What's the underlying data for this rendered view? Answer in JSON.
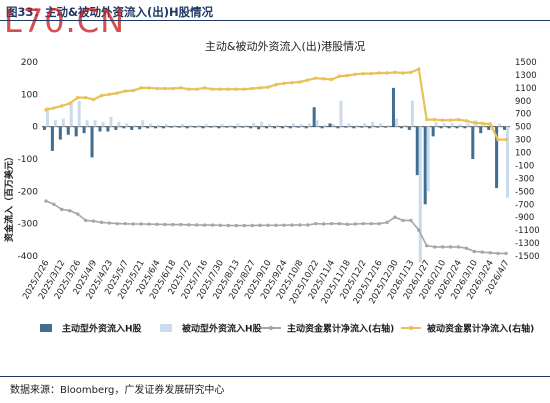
{
  "figure": {
    "title": "图33：主动&被动外资流入(出)H股情况",
    "watermark": "L70.CN",
    "source": "数据来源：Bloomberg，广发证券发展研究中心"
  },
  "colors": {
    "active_bar": "#3f6e92",
    "passive_bar": "#c9dced",
    "active_line": "#a6a6a6",
    "passive_line": "#e7c25a",
    "title_navy": "#1f3864"
  },
  "chart_data": {
    "type": "bar",
    "title": "主动&被动外资流入(出)港股情况",
    "ylabel": "资金流入（百万美元）",
    "ylim": [
      -400,
      200
    ],
    "yticks": [
      -400,
      -300,
      -200,
      -100,
      0,
      100,
      200
    ],
    "y2lim": [
      -1500,
      1500
    ],
    "y2ticks": [
      -1500,
      -1300,
      -1100,
      -900,
      -700,
      -500,
      -300,
      -100,
      100,
      300,
      500,
      700,
      900,
      1100,
      1300,
      1500
    ],
    "grid": false,
    "legend_position": "bottom",
    "x_tick_labels": [
      "2025/2/26",
      "2025/3/12",
      "2025/3/26",
      "2025/4/9",
      "2025/4/23",
      "2025/5/7",
      "2025/5/21",
      "2025/6/4",
      "2025/6/18",
      "2025/7/2",
      "2025/7/16",
      "2025/7/30",
      "2025/8/13",
      "2025/8/27",
      "2025/9/10",
      "2025/9/24",
      "2025/10/8",
      "2025/10/22",
      "2025/11/4",
      "2025/11/18",
      "2025/12/2",
      "2025/12/16",
      "2025/12/30",
      "2026/1/13",
      "2026/1/27",
      "2026/2/10",
      "2026/2/24",
      "2026/3/10",
      "2026/3/24",
      "2026/4/7"
    ],
    "categories": [
      "2025/2/26",
      "2025/3/5",
      "2025/3/12",
      "2025/3/19",
      "2025/3/26",
      "2025/4/2",
      "2025/4/9",
      "2025/4/16",
      "2025/4/23",
      "2025/4/30",
      "2025/5/7",
      "2025/5/14",
      "2025/5/21",
      "2025/5/28",
      "2025/6/4",
      "2025/6/11",
      "2025/6/18",
      "2025/6/25",
      "2025/7/2",
      "2025/7/9",
      "2025/7/16",
      "2025/7/23",
      "2025/7/30",
      "2025/8/6",
      "2025/8/13",
      "2025/8/20",
      "2025/8/27",
      "2025/9/3",
      "2025/9/10",
      "2025/9/17",
      "2025/9/24",
      "2025/10/1",
      "2025/10/8",
      "2025/10/15",
      "2025/10/22",
      "2025/10/29",
      "2025/11/4",
      "2025/11/11",
      "2025/11/18",
      "2025/11/25",
      "2025/12/2",
      "2025/12/9",
      "2025/12/16",
      "2025/12/23",
      "2025/12/30",
      "2026/1/6",
      "2026/1/13",
      "2026/1/20",
      "2026/1/27",
      "2026/2/3",
      "2026/2/10",
      "2026/2/17",
      "2026/2/24",
      "2026/3/3",
      "2026/3/10",
      "2026/3/17",
      "2026/3/24",
      "2026/3/31",
      "2026/4/7"
    ],
    "series": [
      {
        "name": "主动型外资流入H股",
        "axis": "left",
        "kind": "bar",
        "values": [
          -10,
          -75,
          -40,
          -25,
          -30,
          -20,
          -95,
          -15,
          -15,
          -10,
          -5,
          -10,
          -8,
          -5,
          -5,
          -5,
          -3,
          -3,
          -5,
          -3,
          -5,
          -3,
          -5,
          -3,
          -5,
          -3,
          -5,
          -8,
          -5,
          -5,
          -5,
          -5,
          -3,
          -5,
          60,
          -5,
          10,
          -5,
          -3,
          -5,
          -3,
          -5,
          -3,
          -3,
          120,
          -5,
          -10,
          -150,
          -240,
          -30,
          -5,
          -5,
          -5,
          -5,
          -100,
          -20,
          -10,
          -190,
          -10
        ]
      },
      {
        "name": "被动型外资流入H股",
        "axis": "left",
        "kind": "bar",
        "values": [
          60,
          20,
          25,
          75,
          80,
          20,
          20,
          15,
          30,
          15,
          10,
          5,
          20,
          10,
          5,
          8,
          5,
          8,
          5,
          5,
          8,
          5,
          8,
          5,
          10,
          5,
          12,
          15,
          8,
          5,
          5,
          10,
          8,
          10,
          20,
          5,
          8,
          80,
          10,
          5,
          10,
          15,
          10,
          5,
          25,
          5,
          80,
          -420,
          -200,
          15,
          10,
          10,
          8,
          10,
          20,
          5,
          5,
          10,
          -220
        ]
      },
      {
        "name": "主动资金累计净流入(右轴)",
        "axis": "right",
        "kind": "line",
        "values": [
          -650,
          -700,
          -780,
          -800,
          -850,
          -950,
          -960,
          -980,
          -990,
          -1000,
          -1000,
          -1005,
          -1005,
          -1008,
          -1010,
          -1012,
          -1015,
          -1015,
          -1018,
          -1020,
          -1022,
          -1022,
          -1025,
          -1028,
          -1030,
          -1030,
          -1028,
          -1026,
          -1025,
          -1025,
          -1024,
          -1022,
          -1020,
          -1020,
          -1000,
          -1005,
          -1000,
          -1000,
          -1010,
          -1005,
          -1000,
          -1000,
          -1000,
          -980,
          -900,
          -950,
          -950,
          -1100,
          -1340,
          -1360,
          -1360,
          -1360,
          -1360,
          -1380,
          -1430,
          -1440,
          -1450,
          -1460,
          -1460
        ]
      },
      {
        "name": "被动资金累计净流入(右轴)",
        "axis": "right",
        "kind": "line",
        "values": [
          760,
          790,
          820,
          860,
          950,
          950,
          920,
          980,
          1000,
          1020,
          1050,
          1060,
          1100,
          1100,
          1090,
          1090,
          1090,
          1100,
          1080,
          1080,
          1100,
          1080,
          1080,
          1080,
          1080,
          1080,
          1090,
          1100,
          1110,
          1150,
          1170,
          1180,
          1190,
          1220,
          1250,
          1240,
          1230,
          1280,
          1290,
          1310,
          1320,
          1320,
          1330,
          1330,
          1340,
          1330,
          1340,
          1390,
          610,
          610,
          600,
          600,
          610,
          590,
          560,
          550,
          540,
          300,
          300
        ]
      }
    ]
  }
}
